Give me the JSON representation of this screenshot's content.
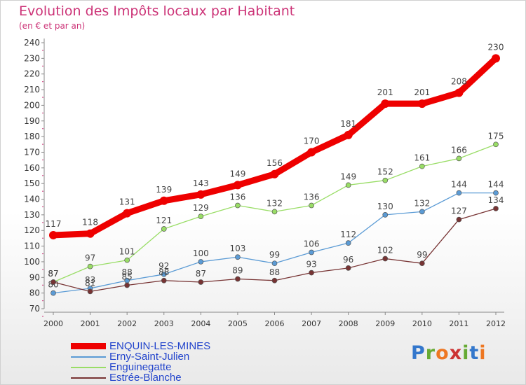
{
  "title": "Evolution des Impôts locaux par Habitant",
  "subtitle": "(en € et par an)",
  "logo": {
    "text": "Proxiti",
    "letter_colors": [
      "#3377cc",
      "#66aa33",
      "#ee7722",
      "#cc3333",
      "#66aa33",
      "#3377cc",
      "#ee7722"
    ]
  },
  "chart_data": {
    "type": "line",
    "x": [
      2000,
      2001,
      2002,
      2003,
      2004,
      2005,
      2006,
      2007,
      2008,
      2009,
      2010,
      2011,
      2012
    ],
    "ylim": [
      70,
      240
    ],
    "ytick_step": 10,
    "grid": false,
    "legend_position": "bottom-left",
    "series": [
      {
        "name": "ENQUIN-LES-MINES",
        "color": "#ee0000",
        "emphasis": true,
        "values": [
          117,
          118,
          131,
          139,
          143,
          149,
          156,
          170,
          181,
          201,
          201,
          208,
          230
        ]
      },
      {
        "name": "Erny-Saint-Julien",
        "color": "#5b9bd5",
        "values": [
          80,
          83,
          88,
          92,
          100,
          103,
          99,
          106,
          112,
          130,
          132,
          144,
          144
        ]
      },
      {
        "name": "Enguinegatte",
        "color": "#99dd66",
        "values": [
          87,
          97,
          101,
          121,
          129,
          136,
          132,
          136,
          149,
          152,
          161,
          166,
          175
        ]
      },
      {
        "name": "Estrée-Blanche",
        "color": "#773333",
        "values": [
          87,
          81,
          85,
          88,
          87,
          89,
          88,
          93,
          96,
          102,
          99,
          127,
          134
        ]
      }
    ]
  }
}
